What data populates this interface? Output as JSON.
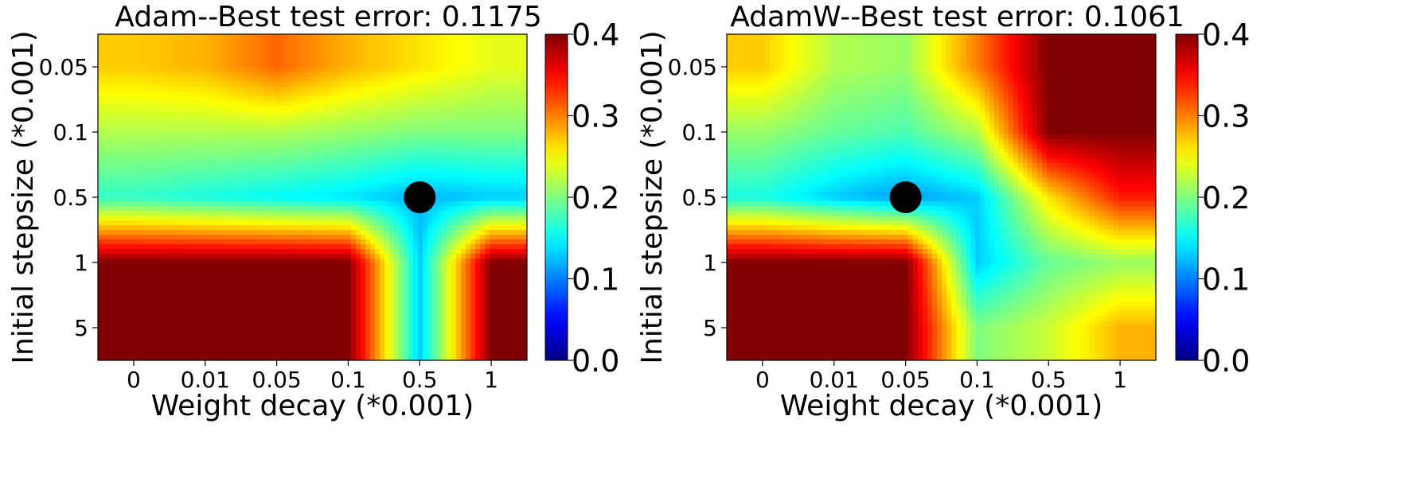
{
  "chart_data": [
    {
      "type": "heatmap",
      "title": "Adam--Best test error: 0.1175",
      "xlabel": "Weight decay (*0.001)",
      "ylabel": "Initial stepsize (*0.001)",
      "x_ticks": [
        "0",
        "0.01",
        "0.05",
        "0.1",
        "0.5",
        "1"
      ],
      "y_ticks": [
        "0.05",
        "0.1",
        "0.5",
        "1",
        "5"
      ],
      "colormap": "jet",
      "clim": [
        0.0,
        0.4
      ],
      "colorbar_ticks": [
        "0.0",
        "0.1",
        "0.2",
        "0.3",
        "0.4"
      ],
      "values": [
        [
          0.27,
          0.28,
          0.31,
          0.28,
          0.26,
          0.24
        ],
        [
          0.22,
          0.22,
          0.22,
          0.21,
          0.2,
          0.2
        ],
        [
          0.17,
          0.16,
          0.15,
          0.14,
          0.12,
          0.13
        ],
        [
          0.4,
          0.4,
          0.4,
          0.4,
          0.13,
          0.4
        ],
        [
          0.4,
          0.4,
          0.4,
          0.4,
          0.13,
          0.4
        ]
      ],
      "best_point": {
        "x": "0.5",
        "y": "0.5",
        "value": 0.1175
      }
    },
    {
      "type": "heatmap",
      "title": "AdamW--Best test error: 0.1061",
      "xlabel": "Weight decay (*0.001)",
      "ylabel": "Initial stepsize (*0.001)",
      "x_ticks": [
        "0",
        "0.01",
        "0.05",
        "0.1",
        "0.5",
        "1"
      ],
      "y_ticks": [
        "0.05",
        "0.1",
        "0.5",
        "1",
        "5"
      ],
      "colormap": "jet",
      "clim": [
        0.0,
        0.4
      ],
      "colorbar_ticks": [
        "0.0",
        "0.1",
        "0.2",
        "0.3",
        "0.4"
      ],
      "values": [
        [
          0.27,
          0.22,
          0.21,
          0.3,
          0.4,
          0.4
        ],
        [
          0.21,
          0.19,
          0.18,
          0.22,
          0.4,
          0.4
        ],
        [
          0.16,
          0.13,
          0.11,
          0.13,
          0.26,
          0.34
        ],
        [
          0.4,
          0.4,
          0.4,
          0.13,
          0.19,
          0.21
        ],
        [
          0.4,
          0.4,
          0.4,
          0.2,
          0.23,
          0.28
        ]
      ],
      "best_point": {
        "x": "0.05",
        "y": "0.5",
        "value": 0.1061
      }
    }
  ]
}
